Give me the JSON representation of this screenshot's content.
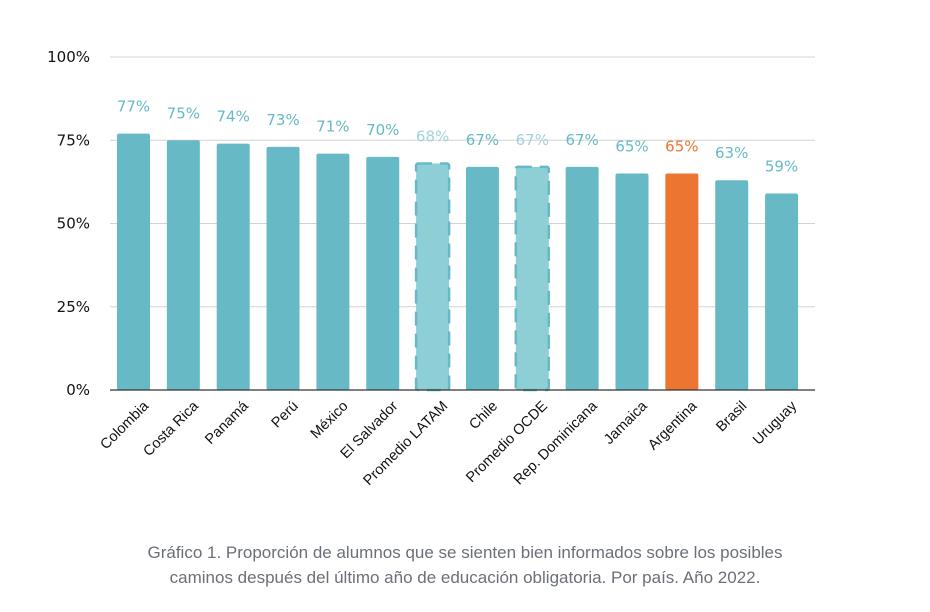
{
  "chart_data": {
    "type": "bar",
    "title": "",
    "xlabel": "",
    "ylabel": "",
    "ylim": [
      0,
      100
    ],
    "yticks": [
      "0%",
      "25%",
      "50%",
      "75%",
      "100%"
    ],
    "ytick_values": [
      0,
      25,
      50,
      75,
      100
    ],
    "grid": true,
    "legend": "none",
    "categories": [
      "Colombia",
      "Costa Rica",
      "Panamá",
      "Perú",
      "México",
      "El Salvador",
      "Promedio LATAM",
      "Chile",
      "Promedio OCDE",
      "Rep. Dominicana",
      "Jamaica",
      "Argentina",
      "Brasil",
      "Uruguay"
    ],
    "values": [
      77,
      75,
      74,
      73,
      71,
      70,
      68,
      67,
      67,
      67,
      65,
      65,
      63,
      59
    ],
    "value_labels": [
      "77%",
      "75%",
      "74%",
      "73%",
      "71%",
      "70%",
      "68%",
      "67%",
      "67%",
      "67%",
      "65%",
      "65%",
      "63%",
      "59%"
    ],
    "bar_styles": [
      "normal",
      "normal",
      "normal",
      "normal",
      "normal",
      "normal",
      "average",
      "normal",
      "average",
      "normal",
      "normal",
      "highlight",
      "normal",
      "normal"
    ],
    "colors": {
      "normal": "#67bac5",
      "average": "#8ecfd6",
      "average_border": "#67bac5",
      "highlight": "#ed7532",
      "label_normal": "#67bac5",
      "label_average": "#9fd3da",
      "label_highlight": "#ed7532",
      "grid": "#d3d3d3",
      "axis": "#333333",
      "tick_text": "#111111"
    }
  },
  "caption": {
    "line1": "Gráfico 1. Proporción de alumnos que se sienten bien informados sobre los posibles",
    "line2": "caminos después del último año de educación obligatoria. Por país. Año 2022."
  }
}
